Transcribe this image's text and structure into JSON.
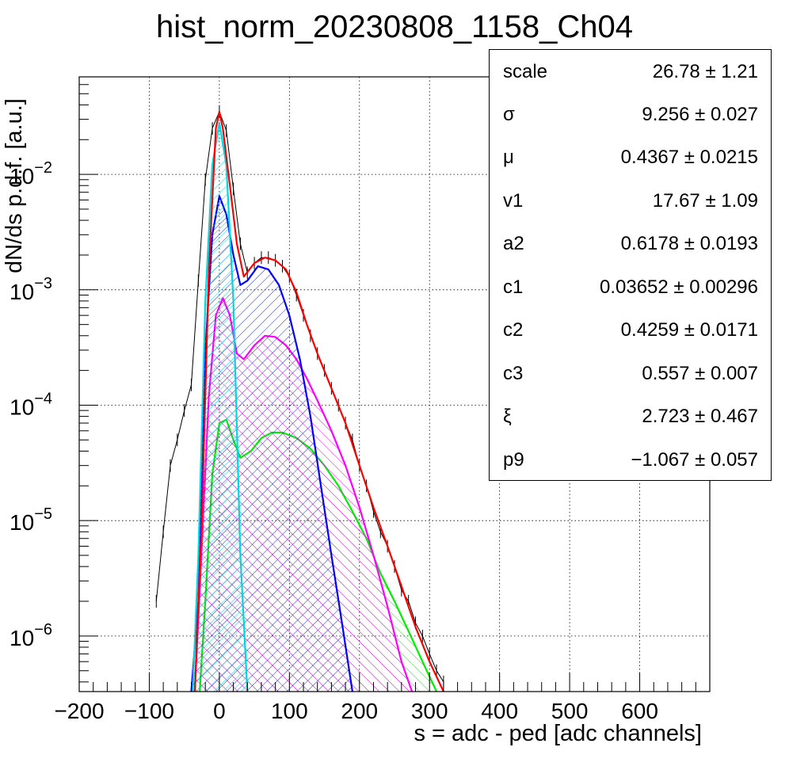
{
  "chart_data": {
    "type": "line",
    "title": "hist_norm_20230808_1158_Ch04",
    "xlabel": "s = adc - ped [adc channels]",
    "ylabel": "dN/ds p.d.f. [a.u.]",
    "xlim": [
      -200,
      700
    ],
    "ylim": [
      3.3e-07,
      0.07
    ],
    "yscale": "log",
    "grid": true,
    "x_ticks": [
      "−200",
      "−100",
      "0",
      "100",
      "200",
      "300",
      "400",
      "500",
      "600"
    ],
    "y_ticks": [
      {
        "base": "10",
        "exp": "−2",
        "value": 0.01
      },
      {
        "base": "10",
        "exp": "−3",
        "value": 0.001
      },
      {
        "base": "10",
        "exp": "−4",
        "value": 0.0001
      },
      {
        "base": "10",
        "exp": "−5",
        "value": 1e-05
      },
      {
        "base": "10",
        "exp": "−6",
        "value": 1e-06
      }
    ],
    "series": [
      {
        "color": "#ff0000",
        "fill": false,
        "x": [
          -35,
          -25,
          -15,
          -5,
          0,
          5,
          15,
          25,
          35,
          50,
          65,
          80,
          95,
          110,
          125,
          140,
          160,
          180,
          200,
          220,
          240,
          260,
          280,
          300,
          320
        ],
        "y": [
          3.3e-07,
          1e-05,
          0.0015,
          0.025,
          0.035,
          0.025,
          0.008,
          0.0025,
          0.0013,
          0.0017,
          0.0019,
          0.0018,
          0.0015,
          0.00095,
          0.0005,
          0.00028,
          0.00014,
          7e-05,
          3e-05,
          1.3e-05,
          6e-06,
          2.7e-06,
          1.2e-06,
          6e-07,
          3.3e-07
        ]
      },
      {
        "color": "#00d8e0",
        "fill": true,
        "x": [
          -38,
          -30,
          -20,
          -10,
          0,
          10,
          20,
          30,
          40
        ],
        "y": [
          3.3e-07,
          5e-06,
          0.0008,
          0.012,
          0.028,
          0.012,
          0.0008,
          5e-06,
          3.3e-07
        ]
      },
      {
        "color": "#0000ff",
        "fill": true,
        "x": [
          -40,
          -30,
          -20,
          -10,
          0,
          10,
          20,
          30,
          40,
          55,
          70,
          85,
          100,
          115,
          130,
          145,
          160,
          175,
          190
        ],
        "y": [
          3.3e-07,
          2e-06,
          0.0003,
          0.003,
          0.0065,
          0.0045,
          0.002,
          0.0011,
          0.0012,
          0.0016,
          0.0015,
          0.0011,
          0.0006,
          0.00025,
          8e-05,
          2e-05,
          5e-06,
          1.3e-06,
          3.3e-07
        ]
      },
      {
        "color": "#ff00ff",
        "fill": true,
        "x": [
          -35,
          -25,
          -15,
          -5,
          5,
          15,
          25,
          35,
          50,
          65,
          80,
          95,
          110,
          125,
          140,
          160,
          180,
          200,
          220,
          240,
          260,
          275
        ],
        "y": [
          3.3e-07,
          6e-06,
          0.00012,
          0.0006,
          0.00085,
          0.0006,
          0.00028,
          0.00025,
          0.00033,
          0.0004,
          0.00039,
          0.00033,
          0.00025,
          0.00017,
          0.00011,
          6e-05,
          3e-05,
          1.3e-05,
          5e-06,
          1.8e-06,
          6e-07,
          3.3e-07
        ]
      },
      {
        "color": "#00ee00",
        "fill": true,
        "x": [
          -28,
          -20,
          -10,
          0,
          10,
          20,
          30,
          45,
          60,
          75,
          90,
          110,
          130,
          150,
          170,
          190,
          210,
          230,
          250,
          270,
          290,
          310
        ],
        "y": [
          3.3e-07,
          2e-06,
          2.5e-05,
          7e-05,
          7.5e-05,
          5e-05,
          3.5e-05,
          4e-05,
          5.2e-05,
          5.8e-05,
          5.8e-05,
          5.2e-05,
          4.2e-05,
          3e-05,
          2e-05,
          1.2e-05,
          7e-06,
          3.5e-06,
          2e-06,
          1.1e-06,
          6e-07,
          3.3e-07
        ]
      },
      {
        "color": "#000000",
        "fill": false,
        "x": [
          -90,
          -80,
          -70,
          -60,
          -50,
          -40,
          -30,
          -20,
          -10,
          0,
          10,
          20,
          30,
          40,
          50,
          60,
          70,
          80,
          90,
          100,
          110,
          120,
          130,
          140,
          150,
          160,
          170,
          180,
          190,
          200,
          210,
          220,
          230,
          240,
          250,
          260,
          270,
          280,
          290,
          300,
          310,
          320
        ],
        "y": [
          2e-06,
          8e-06,
          3e-05,
          5e-05,
          9e-05,
          0.00015,
          0.0012,
          0.009,
          0.025,
          0.035,
          0.024,
          0.0075,
          0.0025,
          0.0014,
          0.0017,
          0.0019,
          0.0019,
          0.0018,
          0.0016,
          0.0013,
          0.0009,
          0.0006,
          0.0004,
          0.00028,
          0.0002,
          0.00014,
          0.0001,
          7e-05,
          5e-05,
          3e-05,
          2e-05,
          1.2e-05,
          8e-06,
          6e-06,
          4e-06,
          2.5e-06,
          2e-06,
          1.3e-06,
          1e-06,
          7e-07,
          5e-07,
          4e-07
        ]
      }
    ]
  },
  "stats_box": {
    "rows": [
      {
        "key": "scale",
        "value": "26.78 ± 1.21"
      },
      {
        "key": "σ",
        "value": "9.256 ± 0.027"
      },
      {
        "key": "μ",
        "value": "0.4367 ± 0.0215"
      },
      {
        "key": "v1",
        "value": "17.67 ± 1.09"
      },
      {
        "key": "a2",
        "value": "0.6178 ± 0.0193"
      },
      {
        "key": "c1",
        "value": "0.03652 ± 0.00296"
      },
      {
        "key": "c2",
        "value": "0.4259 ± 0.0171"
      },
      {
        "key": "c3",
        "value": "0.557 ± 0.007"
      },
      {
        "key": "ξ",
        "value": "2.723 ± 0.467"
      },
      {
        "key": "p9",
        "value": "−1.067 ± 0.057"
      }
    ]
  }
}
